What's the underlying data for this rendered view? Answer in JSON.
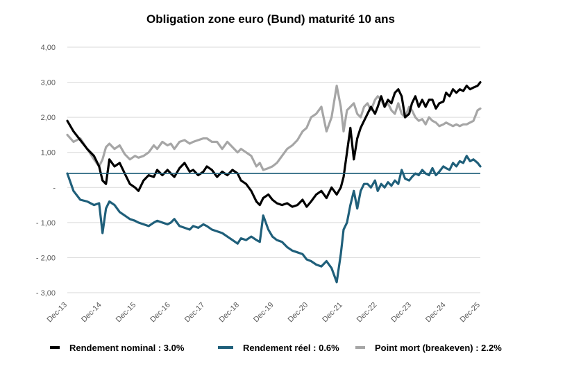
{
  "chart_data": {
    "type": "line",
    "title": "Obligation zone euro (Bund) maturité 10 ans",
    "xlabel": "",
    "ylabel": "",
    "ylim": [
      -3,
      4
    ],
    "y_ticks": [
      {
        "value": 4,
        "label": "4,00"
      },
      {
        "value": 3,
        "label": "3,00"
      },
      {
        "value": 2,
        "label": "2,00"
      },
      {
        "value": 1,
        "label": "1,00"
      },
      {
        "value": 0,
        "label": "-"
      },
      {
        "value": -1,
        "label": "- 1,00"
      },
      {
        "value": -2,
        "label": "- 2,00"
      },
      {
        "value": -3,
        "label": "- 3,00"
      }
    ],
    "x_tick_labels": [
      "Dec-13",
      "Dec-14",
      "Dec-15",
      "Dec-16",
      "Dec-17",
      "Dec-18",
      "Dec-19",
      "Dec-20",
      "Dec-21",
      "Dec-22",
      "Dec-23",
      "Dec-24",
      "Dec-25"
    ],
    "x_range_years": [
      2013.92,
      2026.0
    ],
    "horizontal_line": {
      "value": 0.4,
      "color": "#1f5f7a"
    },
    "grid": true,
    "legend_position": "bottom",
    "series": [
      {
        "name": "Rendement nominal : 3.0%",
        "color": "#000000",
        "x": [
          2013.92,
          2014.1,
          2014.3,
          2014.5,
          2014.7,
          2014.85,
          2014.95,
          2015.05,
          2015.15,
          2015.3,
          2015.45,
          2015.6,
          2015.75,
          2015.9,
          2016.0,
          2016.15,
          2016.3,
          2016.45,
          2016.55,
          2016.7,
          2016.85,
          2016.95,
          2017.05,
          2017.2,
          2017.35,
          2017.5,
          2017.6,
          2017.75,
          2017.9,
          2018.0,
          2018.15,
          2018.3,
          2018.45,
          2018.6,
          2018.75,
          2018.9,
          2019.0,
          2019.15,
          2019.3,
          2019.45,
          2019.55,
          2019.65,
          2019.8,
          2019.92,
          2020.05,
          2020.2,
          2020.35,
          2020.5,
          2020.65,
          2020.8,
          2020.92,
          2021.05,
          2021.2,
          2021.35,
          2021.5,
          2021.65,
          2021.8,
          2021.92,
          2022.0,
          2022.1,
          2022.2,
          2022.3,
          2022.4,
          2022.5,
          2022.6,
          2022.7,
          2022.8,
          2022.92,
          2023.0,
          2023.1,
          2023.2,
          2023.3,
          2023.4,
          2023.5,
          2023.6,
          2023.7,
          2023.8,
          2023.92,
          2024.0,
          2024.1,
          2024.2,
          2024.3,
          2024.4,
          2024.5,
          2024.6,
          2024.7,
          2024.8,
          2024.92,
          2025.0,
          2025.1,
          2025.2,
          2025.3,
          2025.4,
          2025.5,
          2025.6,
          2025.7,
          2025.8,
          2025.92,
          2026.0
        ],
        "values": [
          1.9,
          1.6,
          1.35,
          1.1,
          0.9,
          0.6,
          0.2,
          0.1,
          0.8,
          0.6,
          0.7,
          0.4,
          0.1,
          0.0,
          -0.1,
          0.2,
          0.35,
          0.3,
          0.5,
          0.35,
          0.5,
          0.4,
          0.3,
          0.55,
          0.7,
          0.45,
          0.5,
          0.35,
          0.45,
          0.6,
          0.5,
          0.3,
          0.45,
          0.35,
          0.5,
          0.4,
          0.2,
          0.1,
          -0.1,
          -0.4,
          -0.5,
          -0.3,
          -0.2,
          -0.35,
          -0.45,
          -0.5,
          -0.45,
          -0.55,
          -0.5,
          -0.35,
          -0.55,
          -0.4,
          -0.2,
          -0.1,
          -0.3,
          0.0,
          -0.2,
          0.0,
          0.3,
          1.0,
          1.7,
          0.8,
          1.4,
          1.7,
          1.9,
          2.1,
          2.3,
          2.1,
          2.3,
          2.6,
          2.3,
          2.5,
          2.4,
          2.7,
          2.8,
          2.6,
          2.0,
          2.1,
          2.4,
          2.6,
          2.3,
          2.5,
          2.3,
          2.5,
          2.5,
          2.25,
          2.4,
          2.45,
          2.7,
          2.6,
          2.8,
          2.7,
          2.8,
          2.75,
          2.9,
          2.8,
          2.85,
          2.9,
          3.0
        ]
      },
      {
        "name": "Rendement réel : 0.6%",
        "color": "#1f5f7a",
        "x": [
          2013.92,
          2014.1,
          2014.3,
          2014.5,
          2014.7,
          2014.85,
          2014.95,
          2015.05,
          2015.15,
          2015.3,
          2015.45,
          2015.6,
          2015.75,
          2015.9,
          2016.0,
          2016.15,
          2016.3,
          2016.45,
          2016.55,
          2016.7,
          2016.85,
          2016.95,
          2017.05,
          2017.2,
          2017.35,
          2017.5,
          2017.6,
          2017.75,
          2017.9,
          2018.0,
          2018.15,
          2018.3,
          2018.45,
          2018.6,
          2018.75,
          2018.9,
          2019.0,
          2019.15,
          2019.3,
          2019.45,
          2019.55,
          2019.65,
          2019.8,
          2019.92,
          2020.05,
          2020.2,
          2020.35,
          2020.5,
          2020.65,
          2020.8,
          2020.92,
          2021.05,
          2021.2,
          2021.35,
          2021.5,
          2021.65,
          2021.8,
          2021.92,
          2022.0,
          2022.1,
          2022.2,
          2022.3,
          2022.4,
          2022.5,
          2022.6,
          2022.7,
          2022.8,
          2022.92,
          2023.0,
          2023.1,
          2023.2,
          2023.3,
          2023.4,
          2023.5,
          2023.6,
          2023.7,
          2023.8,
          2023.92,
          2024.0,
          2024.1,
          2024.2,
          2024.3,
          2024.4,
          2024.5,
          2024.6,
          2024.7,
          2024.8,
          2024.92,
          2025.0,
          2025.1,
          2025.2,
          2025.3,
          2025.4,
          2025.5,
          2025.6,
          2025.7,
          2025.8,
          2025.92,
          2026.0
        ],
        "values": [
          0.4,
          -0.1,
          -0.35,
          -0.4,
          -0.5,
          -0.45,
          -1.3,
          -0.6,
          -0.4,
          -0.5,
          -0.7,
          -0.8,
          -0.9,
          -0.95,
          -1.0,
          -1.05,
          -1.1,
          -1.0,
          -0.95,
          -1.0,
          -1.05,
          -1.0,
          -0.9,
          -1.1,
          -1.15,
          -1.2,
          -1.1,
          -1.15,
          -1.05,
          -1.1,
          -1.2,
          -1.25,
          -1.3,
          -1.4,
          -1.5,
          -1.6,
          -1.45,
          -1.5,
          -1.4,
          -1.5,
          -1.55,
          -0.8,
          -1.2,
          -1.4,
          -1.5,
          -1.55,
          -1.7,
          -1.8,
          -1.85,
          -1.9,
          -2.05,
          -2.1,
          -2.2,
          -2.25,
          -2.1,
          -2.3,
          -2.7,
          -1.9,
          -1.2,
          -1.0,
          -0.5,
          -0.1,
          -0.6,
          -0.1,
          0.1,
          0.1,
          0.0,
          0.2,
          -0.1,
          0.1,
          0.0,
          0.15,
          0.05,
          0.2,
          0.1,
          0.5,
          0.25,
          0.2,
          0.3,
          0.4,
          0.35,
          0.5,
          0.4,
          0.35,
          0.55,
          0.35,
          0.45,
          0.6,
          0.55,
          0.5,
          0.7,
          0.6,
          0.75,
          0.7,
          0.9,
          0.75,
          0.8,
          0.7,
          0.6
        ]
      },
      {
        "name": "Point mort (breakeven) : 2.2%",
        "color": "#a6a6a6",
        "x": [
          2013.92,
          2014.1,
          2014.3,
          2014.5,
          2014.7,
          2014.85,
          2014.95,
          2015.05,
          2015.15,
          2015.3,
          2015.45,
          2015.6,
          2015.75,
          2015.9,
          2016.0,
          2016.15,
          2016.3,
          2016.45,
          2016.55,
          2016.7,
          2016.85,
          2016.95,
          2017.05,
          2017.2,
          2017.35,
          2017.5,
          2017.6,
          2017.75,
          2017.9,
          2018.0,
          2018.15,
          2018.3,
          2018.45,
          2018.6,
          2018.75,
          2018.9,
          2019.0,
          2019.15,
          2019.3,
          2019.45,
          2019.55,
          2019.65,
          2019.8,
          2019.92,
          2020.05,
          2020.2,
          2020.35,
          2020.5,
          2020.65,
          2020.8,
          2020.92,
          2021.05,
          2021.2,
          2021.35,
          2021.5,
          2021.65,
          2021.8,
          2021.92,
          2022.0,
          2022.1,
          2022.2,
          2022.3,
          2022.4,
          2022.5,
          2022.6,
          2022.7,
          2022.8,
          2022.92,
          2023.0,
          2023.1,
          2023.2,
          2023.3,
          2023.4,
          2023.5,
          2023.6,
          2023.7,
          2023.8,
          2023.92,
          2024.0,
          2024.1,
          2024.2,
          2024.3,
          2024.4,
          2024.5,
          2024.6,
          2024.7,
          2024.8,
          2024.92,
          2025.0,
          2025.1,
          2025.2,
          2025.3,
          2025.4,
          2025.5,
          2025.6,
          2025.7,
          2025.8,
          2025.92,
          2026.0
        ],
        "values": [
          1.5,
          1.3,
          1.4,
          1.1,
          0.8,
          0.6,
          0.8,
          1.15,
          1.25,
          1.1,
          1.2,
          0.95,
          0.8,
          0.9,
          0.85,
          0.9,
          1.0,
          1.2,
          1.1,
          1.3,
          1.2,
          1.25,
          1.1,
          1.3,
          1.35,
          1.25,
          1.3,
          1.35,
          1.4,
          1.4,
          1.3,
          1.3,
          1.1,
          1.3,
          1.15,
          1.0,
          1.1,
          1.0,
          0.9,
          0.6,
          0.7,
          0.5,
          0.55,
          0.6,
          0.7,
          0.9,
          1.1,
          1.2,
          1.35,
          1.6,
          1.7,
          2.0,
          2.1,
          2.3,
          1.6,
          2.0,
          2.9,
          2.3,
          1.6,
          2.2,
          2.3,
          2.4,
          2.1,
          2.0,
          2.3,
          2.4,
          2.2,
          2.5,
          2.6,
          2.5,
          2.3,
          2.4,
          2.2,
          2.1,
          2.4,
          2.1,
          2.0,
          2.3,
          2.2,
          2.0,
          1.9,
          1.95,
          1.8,
          2.0,
          1.9,
          1.85,
          1.75,
          1.8,
          1.85,
          1.8,
          1.75,
          1.8,
          1.75,
          1.8,
          1.8,
          1.85,
          1.9,
          2.2,
          2.25
        ]
      }
    ]
  },
  "legend_items": [
    {
      "label": "Rendement nominal : 3.0%",
      "color": "#000000"
    },
    {
      "label": "Rendement réel : 0.6%",
      "color": "#1f5f7a"
    },
    {
      "label": "Point mort (breakeven) : 2.2%",
      "color": "#a6a6a6"
    }
  ]
}
